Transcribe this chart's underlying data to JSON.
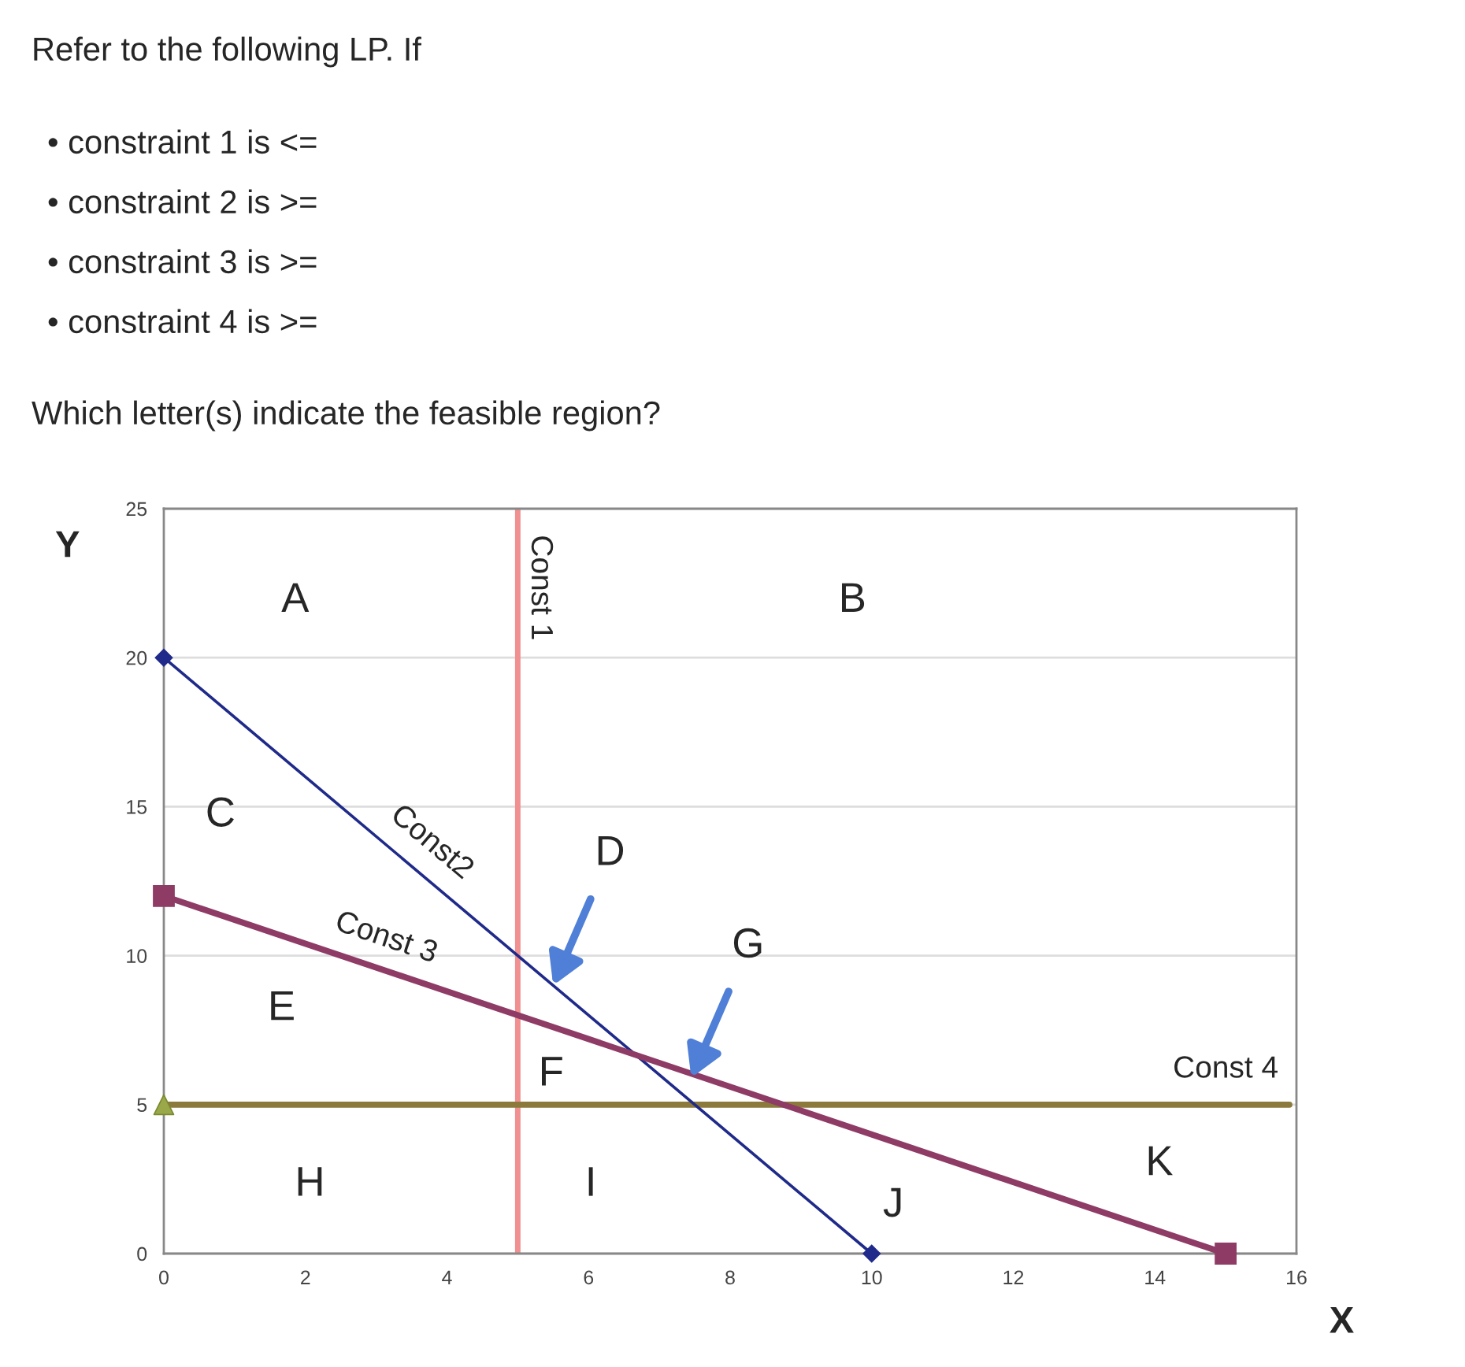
{
  "chart_data": {
    "type": "line",
    "title": "Refer to the following LP. If",
    "xlabel": "X",
    "ylabel": "Y",
    "xlim": [
      0,
      16
    ],
    "xticks": [
      0,
      2,
      4,
      6,
      8,
      10,
      12,
      14,
      16
    ],
    "ylim": [
      0,
      25
    ],
    "yticks": [
      0,
      5,
      10,
      15,
      20,
      25
    ],
    "grid": "y",
    "series": [
      {
        "name": "Const2",
        "color": "#1f2a8a",
        "x": [
          0,
          10
        ],
        "values": [
          20,
          0
        ],
        "marker": "diamond"
      },
      {
        "name": "Const 3",
        "color": "#8e3b66",
        "x": [
          0,
          15
        ],
        "values": [
          12,
          0
        ],
        "marker": "square"
      },
      {
        "type": "scatter",
        "color": "#9aa84a",
        "x": [
          0
        ],
        "values": [
          5
        ],
        "marker": "triangle"
      }
    ],
    "ref_lines": [
      {
        "axis": "x",
        "value": 5,
        "label": "Const 1",
        "color": "#f09090"
      },
      {
        "axis": "y",
        "value": 5,
        "label": "Const 4",
        "color": "#8c7a3c"
      }
    ],
    "annotations": [
      "• constraint 1 is <=",
      "• constraint 2 is >=",
      "• constraint 3 is >=",
      "• constraint 4 is >=",
      "Which letter(s) indicate the feasible region?",
      "A",
      "B",
      "C",
      {
        "text": "D",
        "x": 5.5,
        "y": 9.0
      },
      "E",
      "F",
      {
        "text": "G",
        "x": 7.45,
        "y": 5.9
      },
      "H",
      "I",
      "J",
      "K"
    ]
  }
}
